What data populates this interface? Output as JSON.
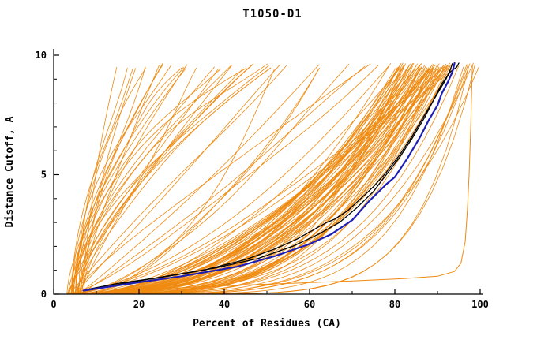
{
  "chart_data": {
    "type": "line",
    "title": "T1050-D1",
    "xlabel": "Percent of Residues (CA)",
    "ylabel": "Distance Cutoff, A",
    "xlim": [
      0,
      100
    ],
    "ylim": [
      0,
      10
    ],
    "x_major_ticks": [
      0,
      20,
      40,
      60,
      80,
      100
    ],
    "x_minor_step": 10,
    "y_major_ticks": [
      0,
      5,
      10
    ],
    "y_minor_step": 1,
    "grid": false,
    "legend": "none",
    "colors": {
      "ensemble_orange": "#EF8A10",
      "highlight_blue": "#1E1EB4",
      "reference_black": "#000000",
      "background": "#FFFFFF"
    },
    "series": [
      {
        "name": "orange-outlier-bottom-right",
        "color": "#EF8A10",
        "stroke_width": 1.0,
        "points": [
          [
            28,
            0.25
          ],
          [
            40,
            0.35
          ],
          [
            55,
            0.45
          ],
          [
            70,
            0.55
          ],
          [
            82,
            0.65
          ],
          [
            90,
            0.75
          ],
          [
            94,
            0.95
          ],
          [
            95.5,
            1.3
          ],
          [
            96.5,
            2.2
          ],
          [
            97,
            3.5
          ],
          [
            97.4,
            5.0
          ],
          [
            97.8,
            7.0
          ],
          [
            98,
            8.5
          ],
          [
            98.2,
            9.6
          ]
        ]
      },
      {
        "name": "reference-black-1",
        "color": "#000000",
        "stroke_width": 1.3,
        "points": [
          [
            8,
            0.2
          ],
          [
            15,
            0.45
          ],
          [
            25,
            0.7
          ],
          [
            35,
            1.0
          ],
          [
            45,
            1.45
          ],
          [
            52,
            1.9
          ],
          [
            57,
            2.3
          ],
          [
            61,
            2.7
          ],
          [
            64,
            3.0
          ],
          [
            66,
            3.15
          ],
          [
            69,
            3.5
          ],
          [
            72,
            4.0
          ],
          [
            75,
            4.5
          ],
          [
            78,
            5.1
          ],
          [
            81,
            5.8
          ],
          [
            84,
            6.6
          ],
          [
            86,
            7.2
          ],
          [
            88,
            7.8
          ],
          [
            90,
            8.4
          ],
          [
            92,
            9.0
          ],
          [
            93,
            9.4
          ],
          [
            93.5,
            9.65
          ]
        ]
      },
      {
        "name": "reference-black-2",
        "color": "#000000",
        "stroke_width": 1.3,
        "points": [
          [
            9,
            0.2
          ],
          [
            18,
            0.5
          ],
          [
            28,
            0.8
          ],
          [
            38,
            1.1
          ],
          [
            48,
            1.5
          ],
          [
            56,
            2.0
          ],
          [
            62,
            2.5
          ],
          [
            67,
            3.0
          ],
          [
            71,
            3.6
          ],
          [
            75,
            4.3
          ],
          [
            78,
            5.0
          ],
          [
            81,
            5.7
          ],
          [
            84,
            6.5
          ],
          [
            87,
            7.4
          ],
          [
            89,
            8.1
          ],
          [
            91,
            8.8
          ],
          [
            93,
            9.3
          ],
          [
            94.5,
            9.5
          ],
          [
            95,
            9.67
          ]
        ]
      },
      {
        "name": "model-highlight-blue",
        "color": "#1E1EB4",
        "stroke_width": 2.2,
        "points": [
          [
            7,
            0.15
          ],
          [
            20,
            0.5
          ],
          [
            30,
            0.75
          ],
          [
            43,
            1.15
          ],
          [
            52,
            1.6
          ],
          [
            60,
            2.1
          ],
          [
            65,
            2.5
          ],
          [
            70,
            3.1
          ],
          [
            74,
            3.9
          ],
          [
            78,
            4.6
          ],
          [
            80,
            4.9
          ],
          [
            83,
            5.7
          ],
          [
            86,
            6.6
          ],
          [
            88,
            7.3
          ],
          [
            90,
            7.9
          ],
          [
            91,
            8.4
          ],
          [
            92.5,
            8.9
          ],
          [
            93.5,
            9.3
          ],
          [
            94,
            9.67
          ]
        ]
      }
    ],
    "ensemble": {
      "name": "predictor-model-curves",
      "color": "#EF8A10",
      "count": 118,
      "seed": 1337,
      "stroke_width": 0.8,
      "x_start_range": [
        3,
        8
      ],
      "y_top_range": [
        9.4,
        9.68
      ]
    }
  }
}
